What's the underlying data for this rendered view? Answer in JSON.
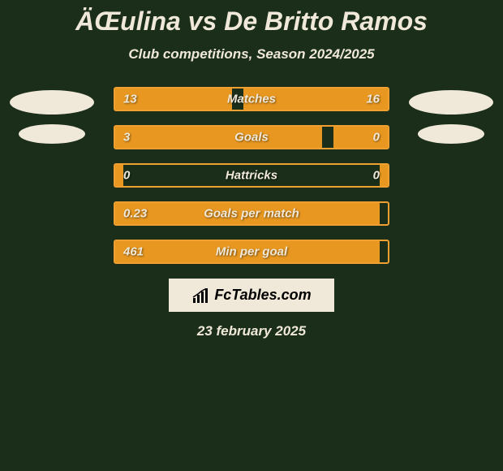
{
  "title": "ÄŒulina vs De Britto Ramos",
  "subtitle": "Club competitions, Season 2024/2025",
  "background_color": "#1a2e1a",
  "text_color": "#f0e8d8",
  "bar_fill_color": "#e89820",
  "bar_border_color": "#f0a030",
  "title_fontsize": 32,
  "subtitle_fontsize": 17,
  "value_fontsize": 15,
  "stats": [
    {
      "label": "Matches",
      "left_value": "13",
      "right_value": "16",
      "left_fill_pct": 43,
      "right_fill_pct": 53
    },
    {
      "label": "Goals",
      "left_value": "3",
      "right_value": "0",
      "left_fill_pct": 76,
      "right_fill_pct": 20
    },
    {
      "label": "Hattricks",
      "left_value": "0",
      "right_value": "0",
      "left_fill_pct": 3,
      "right_fill_pct": 3
    },
    {
      "label": "Goals per match",
      "left_value": "0.23",
      "right_value": "",
      "left_fill_pct": 97,
      "right_fill_pct": 0
    },
    {
      "label": "Min per goal",
      "left_value": "461",
      "right_value": "",
      "left_fill_pct": 97,
      "right_fill_pct": 0
    }
  ],
  "brand": "FcTables.com",
  "date": "23 february 2025"
}
